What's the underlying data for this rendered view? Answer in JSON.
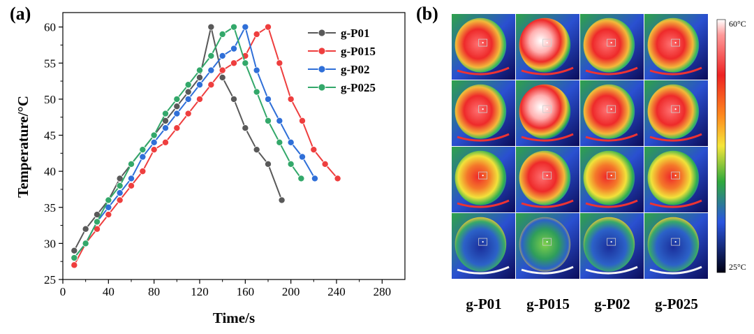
{
  "panel_a": {
    "label": "(a)",
    "chart_data": {
      "type": "line",
      "xlabel": "Time/s",
      "ylabel": "Temperature/°C",
      "xlim": [
        0,
        300
      ],
      "ylim": [
        25,
        62
      ],
      "xticks": [
        "0",
        "40",
        "80",
        "120",
        "160",
        "200",
        "240",
        "280"
      ],
      "yticks": [
        "25",
        "30",
        "35",
        "40",
        "45",
        "50",
        "55",
        "60"
      ],
      "grid": false,
      "legend_position": "top-right",
      "series": [
        {
          "name": "g-P01",
          "color": "#595959",
          "x": [
            10,
            20,
            30,
            40,
            50,
            60,
            70,
            80,
            90,
            100,
            110,
            120,
            130,
            140,
            150,
            160,
            170,
            180,
            192
          ],
          "y": [
            29,
            32,
            34,
            36,
            39,
            41,
            43,
            45,
            47,
            49,
            51,
            53,
            60,
            53,
            50,
            46,
            43,
            41,
            36
          ]
        },
        {
          "name": "g-P015",
          "color": "#ee3e3e",
          "x": [
            10,
            20,
            30,
            40,
            50,
            60,
            70,
            80,
            90,
            100,
            110,
            120,
            130,
            140,
            150,
            160,
            170,
            180,
            190,
            200,
            210,
            220,
            230,
            241
          ],
          "y": [
            27,
            30,
            32,
            34,
            36,
            38,
            40,
            43,
            44,
            46,
            48,
            50,
            52,
            54,
            55,
            56,
            59,
            60,
            55,
            50,
            47,
            43,
            41,
            39
          ]
        },
        {
          "name": "g-P02",
          "color": "#2f6fd8",
          "x": [
            10,
            20,
            30,
            40,
            50,
            60,
            70,
            80,
            90,
            100,
            110,
            120,
            130,
            140,
            150,
            160,
            170,
            180,
            190,
            200,
            210,
            221
          ],
          "y": [
            28,
            30,
            33,
            35,
            37,
            39,
            42,
            44,
            46,
            48,
            50,
            52,
            54,
            56,
            57,
            60,
            54,
            50,
            47,
            44,
            42,
            39
          ]
        },
        {
          "name": "g-P025",
          "color": "#33a86a",
          "x": [
            10,
            20,
            30,
            40,
            50,
            60,
            70,
            80,
            90,
            100,
            110,
            120,
            130,
            140,
            150,
            160,
            170,
            180,
            190,
            200,
            209
          ],
          "y": [
            28,
            30,
            33,
            36,
            38,
            41,
            43,
            45,
            48,
            50,
            52,
            54,
            56,
            59,
            60,
            55,
            51,
            47,
            44,
            41,
            39
          ]
        }
      ]
    }
  },
  "panel_b": {
    "label": "(b)",
    "colorbar": {
      "max_label": "60°C",
      "min_label": "25°C"
    },
    "columns": [
      "g-P01",
      "g-P015",
      "g-P02",
      "g-P025"
    ],
    "colors": {
      "hot": "#ee2a2a",
      "warm": "#f2e23a",
      "mid": "#2fb04f",
      "cool": "#2f6fd8",
      "cold": "#0b0c5a"
    }
  }
}
